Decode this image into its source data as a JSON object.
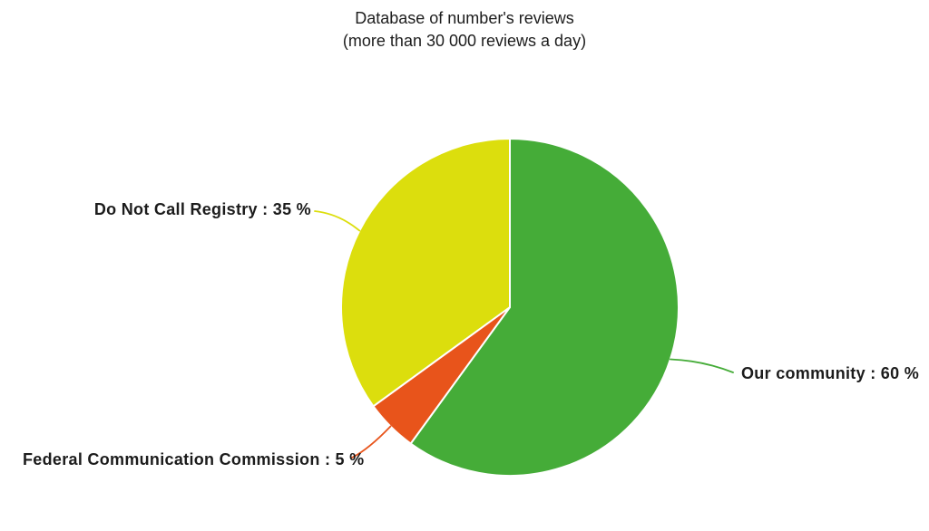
{
  "chart_data": {
    "type": "pie",
    "title": "Database of number's reviews",
    "subtitle": "(more than 30 000 reviews a day)",
    "start_angle_deg": 0,
    "direction": "clockwise",
    "legend_position": "none",
    "label_style": "outside-with-leader-lines",
    "background_color": "#ffffff",
    "slices": [
      {
        "label": "Our community",
        "value": 60,
        "unit": "%",
        "color": "#45AC38",
        "display": "Our community : 60 %"
      },
      {
        "label": "Federal Communication Commission",
        "value": 5,
        "unit": "%",
        "color": "#E8541B",
        "display": "Federal Communication Commission : 5 %"
      },
      {
        "label": "Do Not Call Registry",
        "value": 35,
        "unit": "%",
        "color": "#DCDE0D",
        "display": "Do Not Call Registry : 35 %"
      }
    ]
  }
}
